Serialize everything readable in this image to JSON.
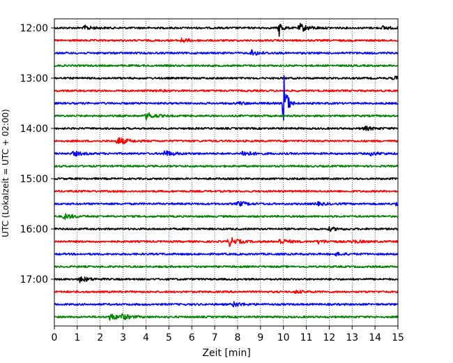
{
  "chart_data": {
    "type": "line",
    "title": "",
    "xlabel": "Zeit  [min]",
    "ylabel": "UTC (Lokalzeit = UTC + 02:00)",
    "xlim": [
      0,
      15
    ],
    "x_ticks": [
      "0",
      "1",
      "2",
      "3",
      "4",
      "5",
      "6",
      "7",
      "8",
      "9",
      "10",
      "11",
      "12",
      "13",
      "14",
      "15"
    ],
    "y_ticks": [
      "12:00",
      "13:00",
      "14:00",
      "15:00",
      "16:00",
      "17:00"
    ],
    "grid": "vertical-dotted",
    "trace_interval_min": 15,
    "start_time": "12:00",
    "trace_colors": [
      "#000000",
      "#ff0000",
      "#0000ff",
      "#008000"
    ],
    "series": [
      {
        "start": "12:00",
        "color": "#000000",
        "events": [
          {
            "t": 1.3,
            "amp": 0.25
          },
          {
            "t": 9.8,
            "amp": 1.1
          },
          {
            "t": 10.7,
            "amp": 0.5
          },
          {
            "t": 14.3,
            "amp": 0.2
          }
        ]
      },
      {
        "start": "12:15",
        "color": "#ff0000",
        "events": [
          {
            "t": 5.5,
            "amp": 0.25
          }
        ]
      },
      {
        "start": "12:30",
        "color": "#0000ff",
        "events": [
          {
            "t": 8.6,
            "amp": 0.3
          }
        ]
      },
      {
        "start": "12:45",
        "color": "#008000",
        "events": []
      },
      {
        "start": "13:00",
        "color": "#000000",
        "events": [
          {
            "t": 14.8,
            "amp": 0.2
          }
        ]
      },
      {
        "start": "13:15",
        "color": "#ff0000",
        "events": [
          {
            "t": 4.5,
            "amp": 0.1
          }
        ]
      },
      {
        "start": "13:30",
        "color": "#0000ff",
        "events": [
          {
            "t": 10.0,
            "amp": 4.5
          },
          {
            "t": 8.0,
            "amp": 0.15
          }
        ]
      },
      {
        "start": "13:45",
        "color": "#008000",
        "events": [
          {
            "t": 4.0,
            "amp": 0.4
          }
        ]
      },
      {
        "start": "14:00",
        "color": "#000000",
        "events": [
          {
            "t": 13.5,
            "amp": 0.25
          }
        ]
      },
      {
        "start": "14:15",
        "color": "#ff0000",
        "events": [
          {
            "t": 2.75,
            "amp": 0.5
          }
        ]
      },
      {
        "start": "14:30",
        "color": "#0000ff",
        "events": [
          {
            "t": 0.8,
            "amp": 0.3
          },
          {
            "t": 4.8,
            "amp": 0.35
          },
          {
            "t": 8.2,
            "amp": 0.35
          },
          {
            "t": 13.8,
            "amp": 0.2
          }
        ]
      },
      {
        "start": "14:45",
        "color": "#008000",
        "events": []
      },
      {
        "start": "15:00",
        "color": "#000000",
        "events": []
      },
      {
        "start": "15:15",
        "color": "#ff0000",
        "events": []
      },
      {
        "start": "15:30",
        "color": "#0000ff",
        "events": [
          {
            "t": 8.0,
            "amp": 0.3
          },
          {
            "t": 11.4,
            "amp": 0.2
          },
          {
            "t": 14.9,
            "amp": 0.25
          }
        ]
      },
      {
        "start": "15:45",
        "color": "#008000",
        "events": [
          {
            "t": 0.4,
            "amp": 0.35
          }
        ]
      },
      {
        "start": "16:00",
        "color": "#000000",
        "events": [
          {
            "t": 12.0,
            "amp": 0.2
          }
        ]
      },
      {
        "start": "16:15",
        "color": "#ff0000",
        "events": [
          {
            "t": 7.6,
            "amp": 0.55
          },
          {
            "t": 9.8,
            "amp": 0.35
          },
          {
            "t": 11.5,
            "amp": 0.2
          },
          {
            "t": 13.0,
            "amp": 0.2
          }
        ]
      },
      {
        "start": "16:30",
        "color": "#0000ff",
        "events": [
          {
            "t": 12.3,
            "amp": 0.15
          }
        ]
      },
      {
        "start": "16:45",
        "color": "#008000",
        "events": []
      },
      {
        "start": "17:00",
        "color": "#000000",
        "events": [
          {
            "t": 1.1,
            "amp": 0.35
          }
        ]
      },
      {
        "start": "17:15",
        "color": "#ff0000",
        "events": [
          {
            "t": 10.5,
            "amp": 0.15
          }
        ]
      },
      {
        "start": "17:30",
        "color": "#0000ff",
        "events": [
          {
            "t": 7.8,
            "amp": 0.3
          }
        ]
      },
      {
        "start": "17:45",
        "color": "#008000",
        "events": [
          {
            "t": 2.4,
            "amp": 0.4
          },
          {
            "t": 2.9,
            "amp": 0.3
          }
        ]
      }
    ]
  }
}
